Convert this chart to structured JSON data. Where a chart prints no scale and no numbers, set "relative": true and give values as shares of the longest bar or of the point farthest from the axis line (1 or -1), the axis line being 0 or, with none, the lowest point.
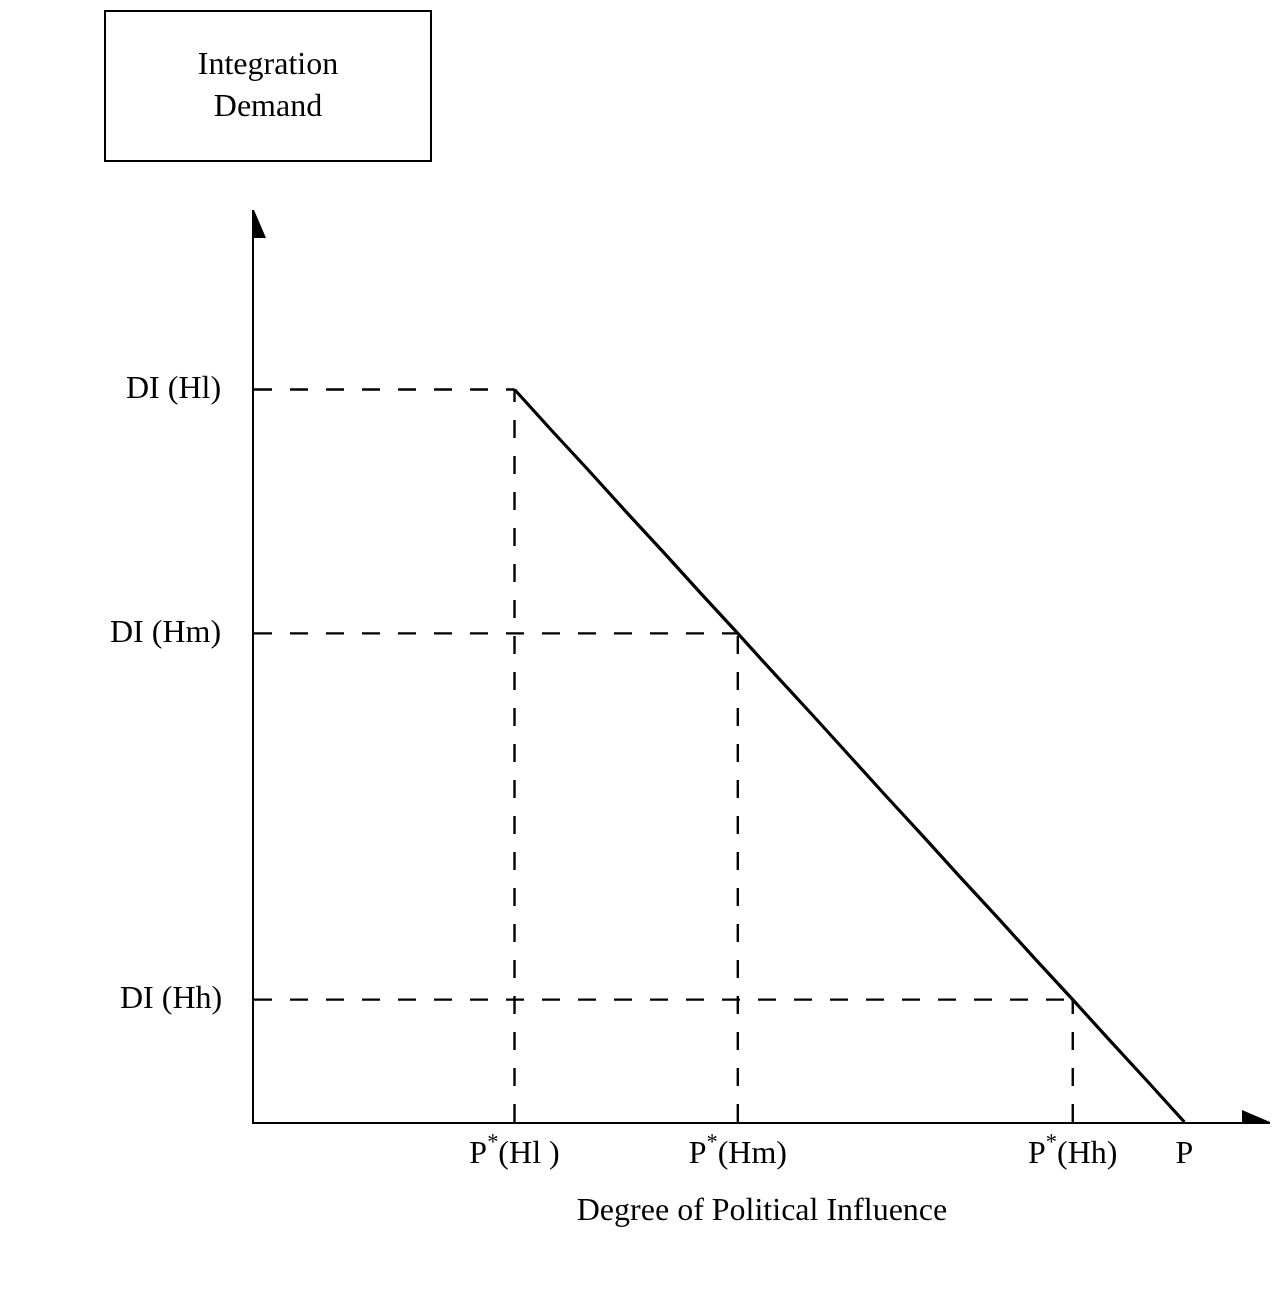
{
  "chart_data": {
    "type": "line",
    "relative": true,
    "xlabel": "Degree of Political Influence",
    "categories": [
      null,
      null,
      null,
      null,
      null,
      null,
      null,
      "P$^{*}$(Hl )",
      null,
      null,
      null,
      null,
      null,
      "P$^{*}$(Hm)",
      null,
      null,
      null,
      null,
      null,
      null,
      null,
      null,
      "P$^{*}$(Hh)",
      null,
      null,
      "P"
    ],
    "grid": false,
    "legend": false,
    "marker": "none",
    "annotations": [
      "Integration Demand"
    ],
    "ref_lines": [
      {
        "axis": "x",
        "value": "P$^{*}$(Hl )",
        "line_style": "dashed",
        "color": "#000000"
      },
      {
        "axis": "x",
        "value": "P$^{*}$(Hm)",
        "line_style": "dashed",
        "color": "#000000"
      },
      {
        "axis": "x",
        "value": "P$^{*}$(Hh)",
        "line_style": "dashed",
        "color": "#000000"
      },
      {
        "axis": "y",
        "value": 1,
        "label": "DI (Hl)",
        "line_style": "dashed",
        "color": "#000000"
      },
      {
        "axis": "y",
        "value": 0.667,
        "label": "DI (Hm)",
        "line_style": "dashed",
        "color": "#000000"
      },
      {
        "axis": "y",
        "value": 0.167,
        "label": "DI (Hh)",
        "line_style": "dashed",
        "color": "#000000"
      }
    ],
    "series": [
      {
        "color": "#000000",
        "line_style": "solid",
        "values": [
          null,
          null,
          null,
          null,
          null,
          null,
          null,
          1,
          0.944,
          0.889,
          0.833,
          0.778,
          0.722,
          0.667,
          0.611,
          0.556,
          0.5,
          0.444,
          0.389,
          0.333,
          0.278,
          0.222,
          0.167,
          0.111,
          0.056,
          0
        ]
      }
    ]
  }
}
